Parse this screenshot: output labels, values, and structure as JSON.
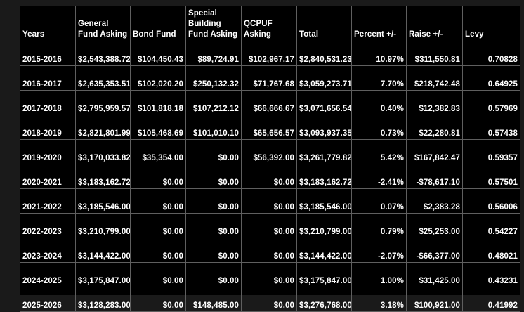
{
  "table": {
    "headers": [
      "Years",
      "General Fund Asking",
      "Bond Fund",
      "Special Building Fund Asking",
      "QCPUF Asking",
      "Total",
      "Percent +/-",
      "Raise +/-",
      "Levy"
    ],
    "rows": [
      [
        "2015-2016",
        "$2,543,388.72",
        "$104,450.43",
        "$89,724.91",
        "$102,967.17",
        "$2,840,531.23",
        "10.97%",
        "$311,550.81",
        "0.70828"
      ],
      [
        "2016-2017",
        "$2,635,353.51",
        "$102,020.20",
        "$250,132.32",
        "$71,767.68",
        "$3,059,273.71",
        "7.70%",
        "$218,742.48",
        "0.64925"
      ],
      [
        "2017-2018",
        "$2,795,959.57",
        "$101,818.18",
        "$107,212.12",
        "$66,666.67",
        "$3,071,656.54",
        "0.40%",
        "$12,382.83",
        "0.57969"
      ],
      [
        "2018-2019",
        "$2,821,801.99",
        "$105,468.69",
        "$101,010.10",
        "$65,656.57",
        "$3,093,937.35",
        "0.73%",
        "$22,280.81",
        "0.57438"
      ],
      [
        "2019-2020",
        "$3,170,033.82",
        "$35,354.00",
        "$0.00",
        "$56,392.00",
        "$3,261,779.82",
        "5.42%",
        "$167,842.47",
        "0.59357"
      ],
      [
        "2020-2021",
        "$3,183,162.72",
        "$0.00",
        "$0.00",
        "$0.00",
        "$3,183,162.72",
        "-2.41%",
        "-$78,617.10",
        "0.57501"
      ],
      [
        "2021-2022",
        "$3,185,546.00",
        "$0.00",
        "$0.00",
        "$0.00",
        "$3,185,546.00",
        "0.07%",
        "$2,383.28",
        "0.56006"
      ],
      [
        "2022-2023",
        "$3,210,799.00",
        "$0.00",
        "$0.00",
        "$0.00",
        "$3,210,799.00",
        "0.79%",
        "$25,253.00",
        "0.54227"
      ],
      [
        "2023-2024",
        "$3,144,422.00",
        "$0.00",
        "$0.00",
        "$0.00",
        "$3,144,422.00",
        "-2.07%",
        "-$66,377.00",
        "0.48021"
      ],
      [
        "2024-2025",
        "$3,175,847.00",
        "$0.00",
        "$0.00",
        "$0.00",
        "$3,175,847.00",
        "1.00%",
        "$31,425.00",
        "0.43231"
      ],
      [
        "2025-2026",
        "$3,128,283.00",
        "$0.00",
        "$148,485.00",
        "$0.00",
        "$3,276,768.00",
        "3.18%",
        "$100,921.00",
        "0.41992"
      ]
    ]
  }
}
